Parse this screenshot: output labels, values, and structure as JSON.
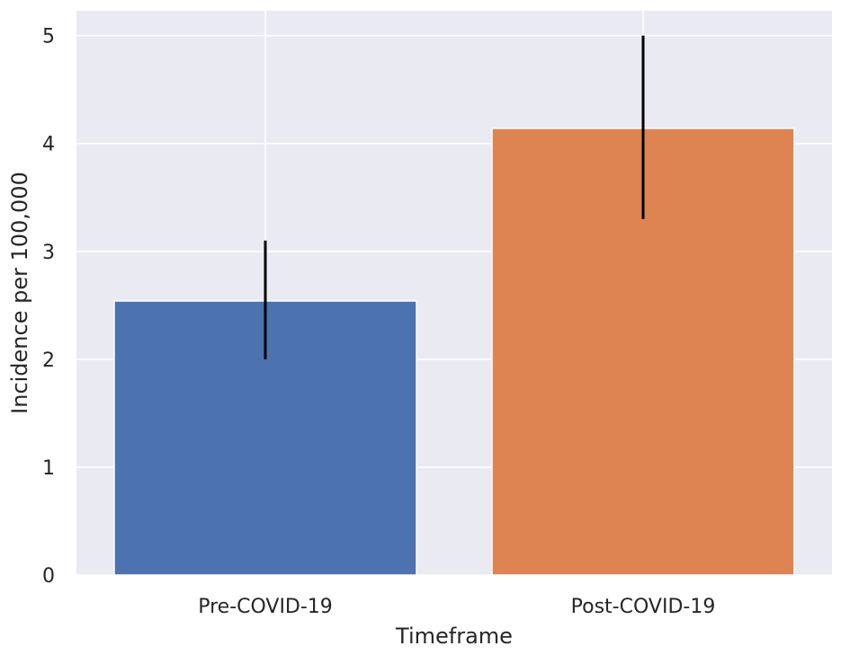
{
  "chart_data": {
    "type": "bar",
    "title": "",
    "xlabel": "Timeframe",
    "ylabel": "Incidence per 100,000",
    "categories": [
      "Pre-COVID-19",
      "Post-COVID-19"
    ],
    "values": [
      2.54,
      4.14
    ],
    "error_low": [
      2.0,
      3.3
    ],
    "error_high": [
      3.1,
      5.0
    ],
    "colors": [
      "#4c72b0",
      "#dd8452"
    ],
    "ylim": [
      0,
      5.23
    ],
    "yticks": [
      0,
      1,
      2,
      3,
      4,
      5
    ],
    "ytick_labels": [
      "0",
      "1",
      "2",
      "3",
      "4",
      "5"
    ],
    "grid": true,
    "background_color": "#eaeaf2",
    "grid_color": "#ffffff",
    "error_bar_color": "#000000"
  }
}
